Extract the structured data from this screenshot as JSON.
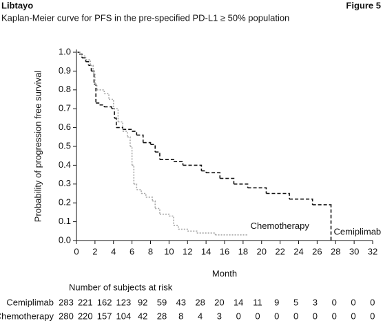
{
  "header": {
    "brand": "Libtayo",
    "figure": "Figure 5"
  },
  "chart_data": {
    "type": "step",
    "title": "Kaplan-Meier curve for PFS in the pre-specified PD-L1 ≥ 50% population",
    "xlabel": "Month",
    "ylabel": "Probability of progression free survival",
    "xlim": [
      0,
      32
    ],
    "ylim": [
      0,
      1.0
    ],
    "xticks": [
      0,
      2,
      4,
      6,
      8,
      10,
      12,
      14,
      16,
      18,
      20,
      22,
      24,
      26,
      28,
      30,
      32
    ],
    "yticks": [
      {
        "value": 0,
        "label": "0.0"
      },
      0.1,
      0.2,
      0.3,
      0.4,
      0.5,
      0.6,
      0.7,
      0.8,
      0.9,
      {
        "value": 1,
        "label": "1.0"
      }
    ],
    "series": [
      {
        "name": "Cemiplimab",
        "color": "#111111",
        "dash": "5,3",
        "x": [
          0,
          0.3,
          0.6,
          1,
          1.3,
          1.6,
          1.9,
          2.1,
          2.5,
          3,
          3.8,
          4.1,
          4.3,
          5,
          6,
          6.5,
          7.2,
          8,
          8.5,
          9,
          10.5,
          11.5,
          13.5,
          14,
          15.5,
          17,
          18.5,
          20.5,
          23,
          25.5,
          27.4,
          27.5
        ],
        "values": [
          1.0,
          0.99,
          0.97,
          0.95,
          0.93,
          0.9,
          0.83,
          0.73,
          0.72,
          0.71,
          0.7,
          0.65,
          0.6,
          0.59,
          0.58,
          0.56,
          0.52,
          0.51,
          0.47,
          0.43,
          0.42,
          0.4,
          0.37,
          0.36,
          0.33,
          0.3,
          0.28,
          0.25,
          0.22,
          0.19,
          0.19,
          0.0
        ]
      },
      {
        "name": "Chemotherapy",
        "color": "#a6a6a6",
        "dash": "2,2",
        "x": [
          0,
          0.5,
          1,
          1.5,
          1.8,
          2,
          2.2,
          3,
          3.5,
          4,
          4.5,
          5,
          5.5,
          5.8,
          6,
          6.2,
          6.5,
          7,
          7.5,
          8.2,
          8.5,
          9,
          10,
          10.5,
          11,
          12,
          13,
          15,
          18.5
        ],
        "values": [
          1.0,
          0.98,
          0.96,
          0.93,
          0.89,
          0.83,
          0.8,
          0.78,
          0.75,
          0.7,
          0.63,
          0.58,
          0.55,
          0.5,
          0.4,
          0.3,
          0.27,
          0.25,
          0.23,
          0.21,
          0.17,
          0.14,
          0.13,
          0.08,
          0.06,
          0.05,
          0.04,
          0.03,
          0.03
        ]
      }
    ],
    "risk_table": {
      "title": "Number of subjects at risk",
      "rows": [
        {
          "name": "Cemiplimab",
          "values": [
            283,
            221,
            162,
            123,
            92,
            59,
            43,
            28,
            20,
            14,
            11,
            9,
            5,
            3,
            0,
            0,
            0
          ]
        },
        {
          "name": "Chemotherapy",
          "values": [
            280,
            220,
            157,
            104,
            42,
            28,
            8,
            4,
            3,
            0,
            0,
            0,
            0,
            0,
            0,
            0,
            0
          ]
        }
      ]
    }
  }
}
